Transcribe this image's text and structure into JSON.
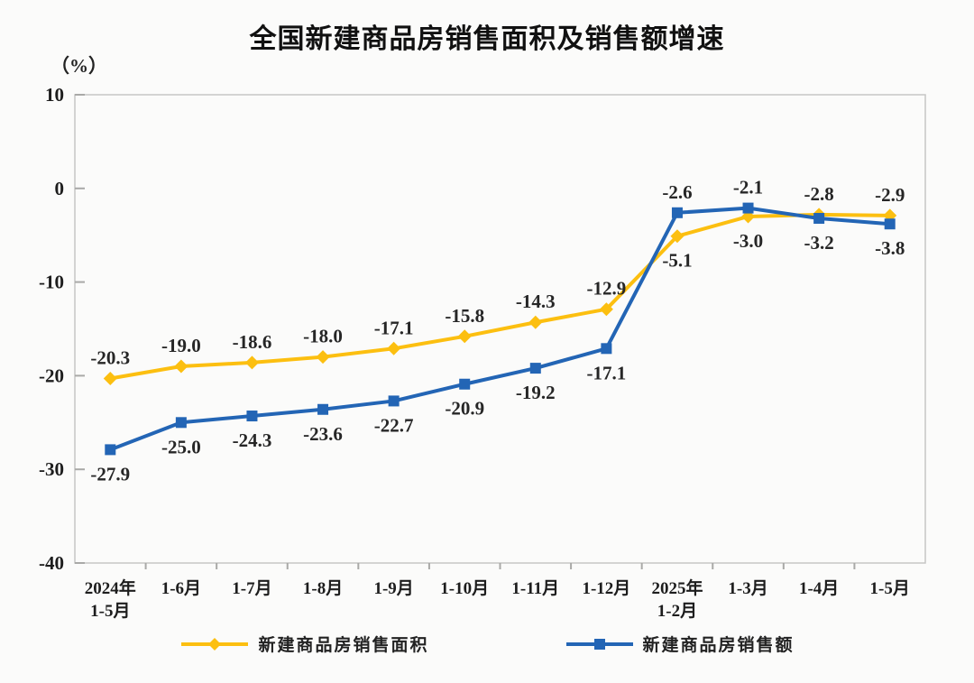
{
  "chart_data": {
    "type": "line",
    "title": "全国新建商品房销售面积及销售额增速",
    "unit": "（%）",
    "categories": [
      "2024年\n1-5月",
      "1-6月",
      "1-7月",
      "1-8月",
      "1-9月",
      "1-10月",
      "1-11月",
      "1-12月",
      "2025年\n1-2月",
      "1-3月",
      "1-4月",
      "1-5月"
    ],
    "y_ticks": [
      10,
      0,
      -10,
      -20,
      -30,
      -40
    ],
    "ylim": [
      -40,
      10
    ],
    "grid": false,
    "legend_position": "bottom",
    "series": [
      {
        "name": "新建商品房销售面积",
        "color": "#FCBF10",
        "marker": "diamond",
        "values": [
          -20.3,
          -19.0,
          -18.6,
          -18.0,
          -17.1,
          -15.8,
          -14.3,
          -12.9,
          -5.1,
          -3.0,
          -2.8,
          -2.9
        ],
        "label_side": [
          "above",
          "above",
          "above",
          "above",
          "above",
          "above",
          "above",
          "above",
          "below",
          "below",
          "above",
          "above"
        ]
      },
      {
        "name": "新建商品房销售额",
        "color": "#2365B5",
        "marker": "square",
        "values": [
          -27.9,
          -25.0,
          -24.3,
          -23.6,
          -22.7,
          -20.9,
          -19.2,
          -17.1,
          -2.6,
          -2.1,
          -3.2,
          -3.8
        ],
        "label_side": [
          "below",
          "below",
          "below",
          "below",
          "below",
          "below",
          "below",
          "below",
          "above",
          "above",
          "below",
          "below"
        ]
      }
    ]
  }
}
